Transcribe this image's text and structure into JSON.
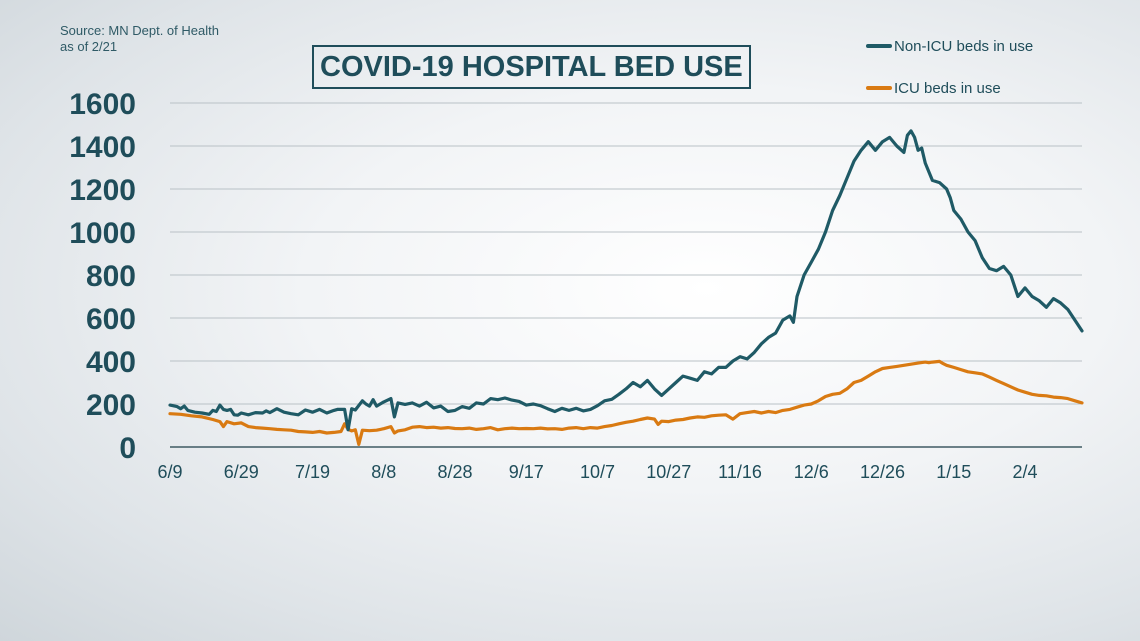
{
  "source": {
    "line1": "Source: MN Dept. of Health",
    "line2": "as of 2/21"
  },
  "title": "COVID-19 HOSPITAL BED USE",
  "colors": {
    "non_icu": "#1f5a66",
    "icu": "#d97a12",
    "text": "#1f4d5a",
    "grid": "#b9c1c6",
    "axis": "#3f5a63"
  },
  "chart_data": {
    "type": "line",
    "title": "COVID-19 HOSPITAL BED USE",
    "xlabel": "",
    "ylabel": "",
    "ylim": [
      0,
      1600
    ],
    "yticks": [
      0,
      200,
      400,
      600,
      800,
      1000,
      1200,
      1400,
      1600
    ],
    "x_tick_labels": [
      "6/9",
      "6/29",
      "7/19",
      "8/8",
      "8/28",
      "9/17",
      "10/7",
      "10/27",
      "11/16",
      "12/6",
      "12/26",
      "1/15",
      "2/4"
    ],
    "x_tick_days": [
      0,
      20,
      40,
      60,
      80,
      100,
      120,
      140,
      160,
      180,
      200,
      220,
      240
    ],
    "x_range_days": [
      0,
      256
    ],
    "grid": true,
    "legend_position": "top-right",
    "series": [
      {
        "name": "Non-ICU beds in use",
        "color": "#1f5a66",
        "points": [
          [
            0,
            195
          ],
          [
            2,
            188
          ],
          [
            3,
            178
          ],
          [
            4,
            190
          ],
          [
            5,
            170
          ],
          [
            7,
            162
          ],
          [
            9,
            158
          ],
          [
            11,
            152
          ],
          [
            12,
            170
          ],
          [
            13,
            165
          ],
          [
            14,
            195
          ],
          [
            15,
            175
          ],
          [
            16,
            170
          ],
          [
            17,
            175
          ],
          [
            18,
            150
          ],
          [
            19,
            148
          ],
          [
            20,
            158
          ],
          [
            22,
            150
          ],
          [
            24,
            160
          ],
          [
            26,
            158
          ],
          [
            27,
            168
          ],
          [
            28,
            160
          ],
          [
            30,
            178
          ],
          [
            32,
            162
          ],
          [
            34,
            155
          ],
          [
            36,
            150
          ],
          [
            38,
            172
          ],
          [
            40,
            162
          ],
          [
            42,
            175
          ],
          [
            44,
            158
          ],
          [
            46,
            170
          ],
          [
            47,
            175
          ],
          [
            49,
            175
          ],
          [
            50,
            80
          ],
          [
            51,
            178
          ],
          [
            52,
            172
          ],
          [
            54,
            215
          ],
          [
            55,
            200
          ],
          [
            56,
            190
          ],
          [
            57,
            220
          ],
          [
            58,
            190
          ],
          [
            60,
            210
          ],
          [
            62,
            225
          ],
          [
            63,
            140
          ],
          [
            64,
            205
          ],
          [
            66,
            198
          ],
          [
            68,
            205
          ],
          [
            70,
            190
          ],
          [
            72,
            208
          ],
          [
            74,
            182
          ],
          [
            76,
            190
          ],
          [
            78,
            165
          ],
          [
            80,
            170
          ],
          [
            82,
            188
          ],
          [
            84,
            180
          ],
          [
            86,
            205
          ],
          [
            88,
            200
          ],
          [
            90,
            225
          ],
          [
            92,
            220
          ],
          [
            94,
            228
          ],
          [
            96,
            218
          ],
          [
            98,
            212
          ],
          [
            100,
            195
          ],
          [
            102,
            200
          ],
          [
            104,
            192
          ],
          [
            106,
            178
          ],
          [
            108,
            165
          ],
          [
            110,
            180
          ],
          [
            112,
            170
          ],
          [
            114,
            180
          ],
          [
            116,
            168
          ],
          [
            118,
            175
          ],
          [
            120,
            192
          ],
          [
            122,
            215
          ],
          [
            124,
            222
          ],
          [
            126,
            245
          ],
          [
            128,
            270
          ],
          [
            130,
            300
          ],
          [
            132,
            280
          ],
          [
            134,
            310
          ],
          [
            136,
            270
          ],
          [
            138,
            240
          ],
          [
            140,
            270
          ],
          [
            142,
            300
          ],
          [
            144,
            330
          ],
          [
            146,
            320
          ],
          [
            148,
            310
          ],
          [
            150,
            350
          ],
          [
            152,
            340
          ],
          [
            154,
            370
          ],
          [
            156,
            370
          ],
          [
            158,
            400
          ],
          [
            160,
            420
          ],
          [
            162,
            410
          ],
          [
            164,
            440
          ],
          [
            166,
            480
          ],
          [
            168,
            510
          ],
          [
            170,
            530
          ],
          [
            172,
            590
          ],
          [
            174,
            610
          ],
          [
            175,
            580
          ],
          [
            176,
            700
          ],
          [
            178,
            800
          ],
          [
            180,
            860
          ],
          [
            182,
            920
          ],
          [
            184,
            1000
          ],
          [
            186,
            1100
          ],
          [
            188,
            1170
          ],
          [
            190,
            1250
          ],
          [
            192,
            1330
          ],
          [
            194,
            1380
          ],
          [
            196,
            1420
          ],
          [
            198,
            1380
          ],
          [
            200,
            1420
          ],
          [
            202,
            1440
          ],
          [
            204,
            1400
          ],
          [
            206,
            1370
          ],
          [
            207,
            1450
          ],
          [
            208,
            1470
          ],
          [
            209,
            1440
          ],
          [
            210,
            1380
          ],
          [
            211,
            1390
          ],
          [
            212,
            1320
          ],
          [
            214,
            1240
          ],
          [
            216,
            1230
          ],
          [
            218,
            1200
          ],
          [
            219,
            1160
          ],
          [
            220,
            1100
          ],
          [
            222,
            1060
          ],
          [
            224,
            1000
          ],
          [
            226,
            960
          ],
          [
            228,
            880
          ],
          [
            230,
            830
          ],
          [
            232,
            820
          ],
          [
            234,
            840
          ],
          [
            236,
            800
          ],
          [
            238,
            700
          ],
          [
            240,
            740
          ],
          [
            242,
            700
          ],
          [
            244,
            680
          ],
          [
            246,
            650
          ],
          [
            248,
            690
          ],
          [
            250,
            670
          ],
          [
            252,
            640
          ],
          [
            254,
            590
          ],
          [
            256,
            540
          ]
        ]
      },
      {
        "name": "ICU beds in use",
        "color": "#d97a12",
        "points": [
          [
            0,
            155
          ],
          [
            3,
            152
          ],
          [
            6,
            145
          ],
          [
            9,
            140
          ],
          [
            12,
            128
          ],
          [
            14,
            118
          ],
          [
            15,
            95
          ],
          [
            16,
            118
          ],
          [
            18,
            108
          ],
          [
            20,
            112
          ],
          [
            22,
            95
          ],
          [
            24,
            90
          ],
          [
            26,
            88
          ],
          [
            28,
            85
          ],
          [
            30,
            82
          ],
          [
            32,
            80
          ],
          [
            34,
            78
          ],
          [
            36,
            72
          ],
          [
            38,
            70
          ],
          [
            40,
            68
          ],
          [
            42,
            72
          ],
          [
            44,
            65
          ],
          [
            46,
            68
          ],
          [
            48,
            72
          ],
          [
            49,
            108
          ],
          [
            50,
            82
          ],
          [
            51,
            75
          ],
          [
            52,
            80
          ],
          [
            53,
            12
          ],
          [
            54,
            78
          ],
          [
            56,
            76
          ],
          [
            58,
            78
          ],
          [
            60,
            85
          ],
          [
            62,
            95
          ],
          [
            63,
            65
          ],
          [
            64,
            75
          ],
          [
            66,
            80
          ],
          [
            68,
            92
          ],
          [
            70,
            95
          ],
          [
            72,
            90
          ],
          [
            74,
            92
          ],
          [
            76,
            88
          ],
          [
            78,
            90
          ],
          [
            80,
            86
          ],
          [
            82,
            85
          ],
          [
            84,
            88
          ],
          [
            86,
            82
          ],
          [
            88,
            85
          ],
          [
            90,
            90
          ],
          [
            92,
            80
          ],
          [
            94,
            85
          ],
          [
            96,
            88
          ],
          [
            98,
            85
          ],
          [
            100,
            86
          ],
          [
            102,
            85
          ],
          [
            104,
            88
          ],
          [
            106,
            84
          ],
          [
            108,
            85
          ],
          [
            110,
            82
          ],
          [
            112,
            88
          ],
          [
            114,
            90
          ],
          [
            116,
            85
          ],
          [
            118,
            90
          ],
          [
            120,
            88
          ],
          [
            122,
            95
          ],
          [
            124,
            100
          ],
          [
            126,
            108
          ],
          [
            128,
            115
          ],
          [
            130,
            120
          ],
          [
            132,
            128
          ],
          [
            134,
            135
          ],
          [
            136,
            130
          ],
          [
            137,
            105
          ],
          [
            138,
            120
          ],
          [
            140,
            118
          ],
          [
            142,
            125
          ],
          [
            144,
            128
          ],
          [
            146,
            135
          ],
          [
            148,
            140
          ],
          [
            150,
            138
          ],
          [
            152,
            145
          ],
          [
            154,
            148
          ],
          [
            156,
            150
          ],
          [
            158,
            130
          ],
          [
            160,
            155
          ],
          [
            162,
            160
          ],
          [
            164,
            165
          ],
          [
            166,
            158
          ],
          [
            168,
            165
          ],
          [
            170,
            160
          ],
          [
            172,
            170
          ],
          [
            174,
            175
          ],
          [
            176,
            185
          ],
          [
            178,
            195
          ],
          [
            180,
            200
          ],
          [
            182,
            215
          ],
          [
            184,
            235
          ],
          [
            186,
            245
          ],
          [
            188,
            250
          ],
          [
            190,
            270
          ],
          [
            192,
            300
          ],
          [
            194,
            310
          ],
          [
            196,
            330
          ],
          [
            198,
            350
          ],
          [
            200,
            365
          ],
          [
            202,
            370
          ],
          [
            204,
            375
          ],
          [
            206,
            380
          ],
          [
            208,
            385
          ],
          [
            210,
            390
          ],
          [
            212,
            395
          ],
          [
            213,
            392
          ],
          [
            214,
            395
          ],
          [
            216,
            398
          ],
          [
            217,
            388
          ],
          [
            218,
            380
          ],
          [
            220,
            370
          ],
          [
            222,
            360
          ],
          [
            224,
            350
          ],
          [
            226,
            345
          ],
          [
            228,
            340
          ],
          [
            230,
            325
          ],
          [
            232,
            310
          ],
          [
            234,
            295
          ],
          [
            236,
            280
          ],
          [
            238,
            265
          ],
          [
            240,
            255
          ],
          [
            242,
            245
          ],
          [
            244,
            240
          ],
          [
            246,
            238
          ],
          [
            248,
            232
          ],
          [
            250,
            230
          ],
          [
            252,
            225
          ],
          [
            254,
            215
          ],
          [
            256,
            205
          ]
        ]
      }
    ]
  }
}
